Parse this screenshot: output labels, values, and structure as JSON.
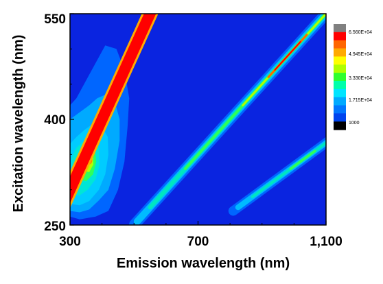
{
  "chart_data": {
    "type": "heatmap",
    "title": "",
    "xlabel": "Emission wavelength (nm)",
    "ylabel": "Excitation wavelength (nm)",
    "xlim": [
      300,
      1100
    ],
    "ylim": [
      250,
      550
    ],
    "x_ticks": [
      {
        "value": 300,
        "label": "300"
      },
      {
        "value": 700,
        "label": "700"
      },
      {
        "value": 1100,
        "label": "1,100"
      }
    ],
    "y_ticks": [
      {
        "value": 250,
        "label": "250"
      },
      {
        "value": 400,
        "label": "400"
      },
      {
        "value": 550,
        "label": "550"
      }
    ],
    "colorbar": {
      "labels": [
        "6.560E+04",
        "4.945E+04",
        "3.330E+04",
        "1.715E+04",
        "1000"
      ],
      "colors": [
        "#808080",
        "#ff0000",
        "#ff6600",
        "#ffaa00",
        "#ffff00",
        "#b0ff00",
        "#2eff2e",
        "#00ffaa",
        "#00e5ff",
        "#00aaff",
        "#0077ff",
        "#0044ee",
        "#000000"
      ]
    },
    "features": [
      {
        "name": "first-order Rayleigh scatter",
        "emission_eq_excitation_x": 1,
        "intensity": 65000
      },
      {
        "name": "second-order scatter",
        "emission_eq_excitation_x": 2,
        "intensity": 50000
      },
      {
        "name": "third-order scatter",
        "emission_eq_excitation_x": 3,
        "intensity": 18000
      },
      {
        "name": "fluorescence peak",
        "excitation": 344,
        "emission": 375,
        "intensity": 40000
      }
    ]
  }
}
